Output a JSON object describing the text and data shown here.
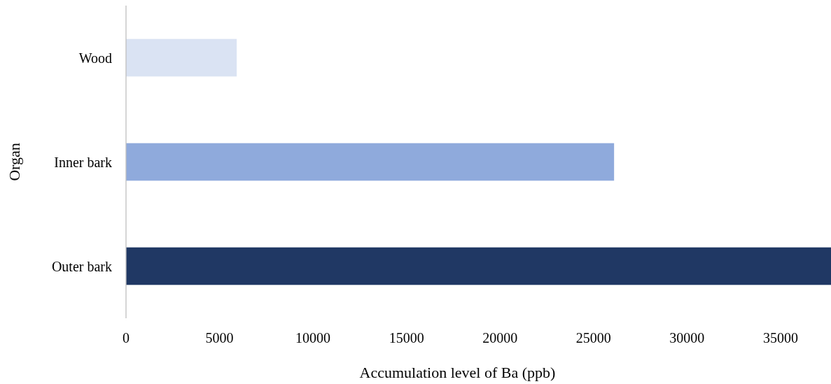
{
  "chart_data": {
    "type": "bar",
    "orientation": "horizontal",
    "xlabel": "Accumulation level of Ba (ppb)",
    "ylabel": "Organ",
    "categories": [
      "Wood",
      "Inner bark",
      "Outer bark"
    ],
    "values": [
      5920,
      26100,
      37700
    ],
    "colors": [
      "#dae3f3",
      "#8faadc",
      "#203864"
    ],
    "xlim": [
      0,
      37700
    ],
    "xticks": [
      0,
      5000,
      10000,
      15000,
      20000,
      25000,
      30000,
      35000
    ],
    "grid": false
  }
}
